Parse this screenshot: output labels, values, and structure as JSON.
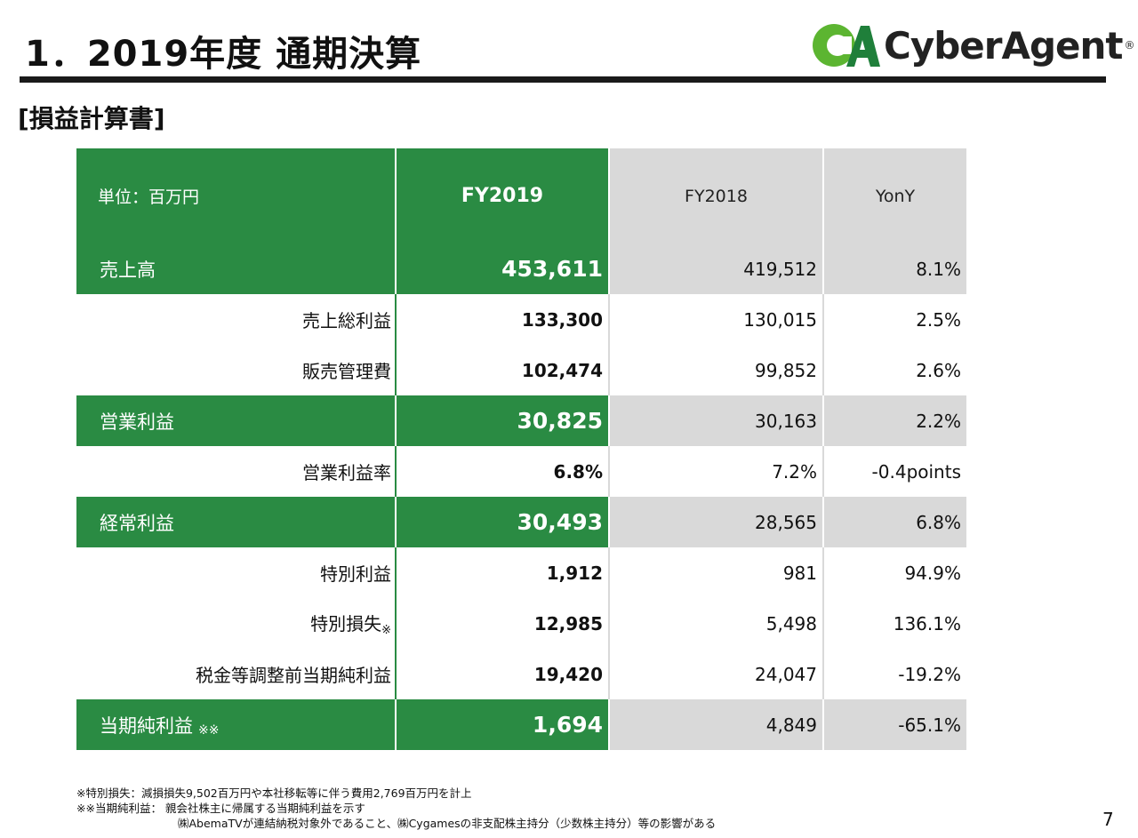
{
  "header": {
    "title": "1．2019年度 通期決算",
    "subtitle": "[損益計算書]",
    "logo_text": "CyberAgent",
    "logo_reg": "®"
  },
  "table": {
    "unit_label": "単位：百万円",
    "col_fy2019": "FY2019",
    "col_fy2018": "FY2018",
    "col_yoy": "YonY",
    "rows": [
      {
        "label": "売上高",
        "mark": "",
        "fy2019": "453,611",
        "fy2018": "419,512",
        "yoy": "8.1%"
      },
      {
        "label": "売上総利益",
        "mark": "",
        "fy2019": "133,300",
        "fy2018": "130,015",
        "yoy": "2.5%"
      },
      {
        "label": "販売管理費",
        "mark": "",
        "fy2019": "102,474",
        "fy2018": "99,852",
        "yoy": "2.6%"
      },
      {
        "label": "営業利益",
        "mark": "",
        "fy2019": "30,825",
        "fy2018": "30,163",
        "yoy": "2.2%"
      },
      {
        "label": "営業利益率",
        "mark": "",
        "fy2019": "6.8%",
        "fy2018": "7.2%",
        "yoy": "-0.4points"
      },
      {
        "label": "経常利益",
        "mark": "",
        "fy2019": "30,493",
        "fy2018": "28,565",
        "yoy": "6.8%"
      },
      {
        "label": "特別利益",
        "mark": "",
        "fy2019": "1,912",
        "fy2018": "981",
        "yoy": "94.9%"
      },
      {
        "label": "特別損失",
        "mark": "※",
        "fy2019": "12,985",
        "fy2018": "5,498",
        "yoy": "136.1%"
      },
      {
        "label": "税金等調整前当期純利益",
        "mark": "",
        "fy2019": "19,420",
        "fy2018": "24,047",
        "yoy": "-19.2%"
      },
      {
        "label": "当期純利益",
        "mark": "※※",
        "fy2019": "1,694",
        "fy2018": "4,849",
        "yoy": "-65.1%"
      }
    ]
  },
  "footnotes": {
    "line1": "※特別損失：減損損失9,502百万円や本社移転等に伴う費用2,769百万円を計上",
    "line2": "※※当期純利益： 親会社株主に帰属する当期純利益を示す",
    "line3": "㈱AbemaTVが連結納税対象外であること、㈱Cygamesの非支配株主持分（少数株主持分）等の影響がある"
  },
  "page_number": "7",
  "colors": {
    "green": "#2a8b43",
    "gray": "#d9d9d9",
    "logo_green": "#5cb531",
    "logo_dark": "#1f7f3a"
  }
}
